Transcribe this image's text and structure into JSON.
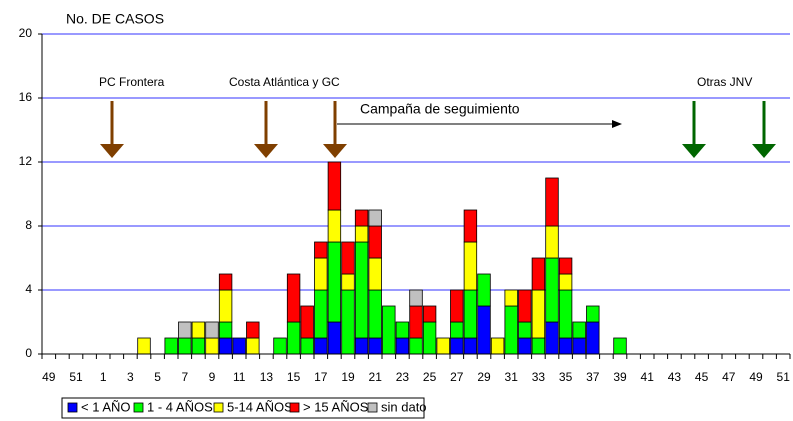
{
  "chart_data": {
    "type": "stacked_bar",
    "y_axis_label": "No. DE CASOS",
    "categories": [
      "49",
      null,
      "51",
      null,
      "1",
      null,
      "3",
      null,
      "5",
      null,
      "7",
      null,
      "9",
      null,
      "11",
      null,
      "13",
      null,
      "15",
      null,
      "17",
      null,
      "19",
      null,
      "21",
      null,
      "23",
      null,
      "25",
      null,
      "27",
      null,
      "29",
      null,
      "31",
      null,
      "33",
      null,
      "35",
      null,
      "37",
      null,
      "39",
      null,
      "41",
      null,
      "43",
      null,
      "45",
      null,
      "47",
      null,
      "49",
      null,
      "51"
    ],
    "series": [
      {
        "name": "< 1 AÑO",
        "color": "#0000ff",
        "values": [
          0,
          0,
          0,
          0,
          0,
          0,
          0,
          0,
          0,
          0,
          0,
          0,
          0,
          1,
          1,
          0,
          0,
          0,
          0,
          0,
          1,
          2,
          0,
          1,
          1,
          0,
          1,
          0,
          0,
          0,
          1,
          1,
          3,
          0,
          0,
          1,
          0,
          2,
          1,
          1,
          2,
          0,
          0,
          0,
          0,
          0,
          0,
          0,
          0,
          0,
          0,
          0,
          0,
          0,
          0
        ]
      },
      {
        "name": "1 - 4 AÑOS",
        "color": "#00ff00",
        "values": [
          0,
          0,
          0,
          0,
          0,
          0,
          0,
          0,
          0,
          1,
          1,
          1,
          0,
          1,
          0,
          0,
          0,
          1,
          2,
          1,
          3,
          5,
          4,
          6,
          3,
          3,
          1,
          1,
          2,
          0,
          1,
          3,
          2,
          0,
          3,
          1,
          1,
          4,
          3,
          1,
          1,
          0,
          1,
          0,
          0,
          0,
          0,
          0,
          0,
          0,
          0,
          0,
          0,
          0,
          0
        ]
      },
      {
        "name": "5-14 AÑOS",
        "color": "#ffff00",
        "values": [
          0,
          0,
          0,
          0,
          0,
          0,
          0,
          1,
          0,
          0,
          0,
          1,
          1,
          2,
          0,
          1,
          0,
          0,
          0,
          0,
          2,
          2,
          1,
          1,
          2,
          0,
          0,
          0,
          0,
          1,
          0,
          3,
          0,
          1,
          1,
          0,
          3,
          2,
          1,
          0,
          0,
          0,
          0,
          0,
          0,
          0,
          0,
          0,
          0,
          0,
          0,
          0,
          0,
          0,
          0
        ]
      },
      {
        "name": "> 15 AÑOS",
        "color": "#ff0000",
        "values": [
          0,
          0,
          0,
          0,
          0,
          0,
          0,
          0,
          0,
          0,
          0,
          0,
          0,
          1,
          0,
          1,
          0,
          0,
          3,
          2,
          1,
          3,
          2,
          1,
          2,
          0,
          0,
          2,
          1,
          0,
          2,
          2,
          0,
          0,
          0,
          2,
          2,
          3,
          1,
          0,
          0,
          0,
          0,
          0,
          0,
          0,
          0,
          0,
          0,
          0,
          0,
          0,
          0,
          0,
          0
        ]
      },
      {
        "name": "sin dato",
        "color": "#c0c0c0",
        "values": [
          0,
          0,
          0,
          0,
          0,
          0,
          0,
          0,
          0,
          0,
          1,
          0,
          1,
          0,
          0,
          0,
          0,
          0,
          0,
          0,
          0,
          0,
          0,
          0,
          1,
          0,
          0,
          1,
          0,
          0,
          0,
          0,
          0,
          0,
          0,
          0,
          0,
          0,
          0,
          0,
          0,
          0,
          0,
          0,
          0,
          0,
          0,
          0,
          0,
          0,
          0,
          0,
          0,
          0,
          0
        ]
      }
    ],
    "ylim": [
      0,
      20
    ],
    "yticks": [
      0,
      4,
      8,
      12,
      16,
      20
    ],
    "grid": true,
    "annotations": [
      "PC Frontera",
      "Costa Atlántica y GC",
      "Campaña de seguimiento",
      "Otras JNV"
    ]
  }
}
